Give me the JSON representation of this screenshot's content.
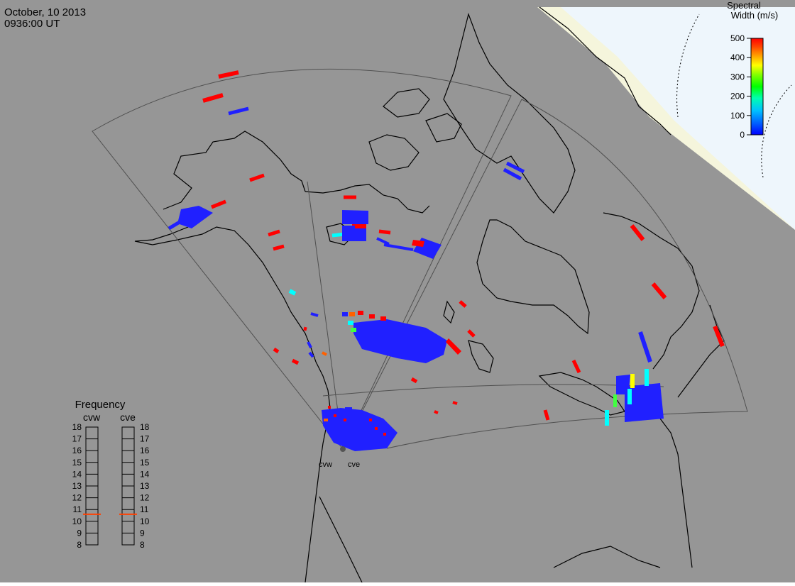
{
  "header": {
    "date": "October, 10 2013",
    "time": "0936:00 UT"
  },
  "colorbar": {
    "title_line1": "Spectral",
    "title_line2": "Width (m/s)",
    "ticks": [
      "500",
      "400",
      "300",
      "200",
      "100",
      "0"
    ],
    "colors": [
      "#0000ff",
      "#0080ff",
      "#00ffff",
      "#00ff40",
      "#80ff00",
      "#ffff00",
      "#ffa000",
      "#ff4000",
      "#ff0000"
    ]
  },
  "frequency_panel": {
    "title": "Frequency",
    "radars": [
      {
        "name": "cvw",
        "value_mhz": 10.6
      },
      {
        "name": "cve",
        "value_mhz": 10.6
      }
    ],
    "scale": [
      "18",
      "17",
      "16",
      "15",
      "14",
      "13",
      "12",
      "11",
      "10",
      "9",
      "8"
    ],
    "marker_color": "#ff4000"
  },
  "radar_sites": [
    {
      "label": "cvw"
    },
    {
      "label": "cve"
    }
  ],
  "map_colors": {
    "ocean_land": "#969696",
    "ice": "#f5f5dc",
    "polar": "#eef6fc",
    "coast": "#000000",
    "fov": "#505050"
  }
}
